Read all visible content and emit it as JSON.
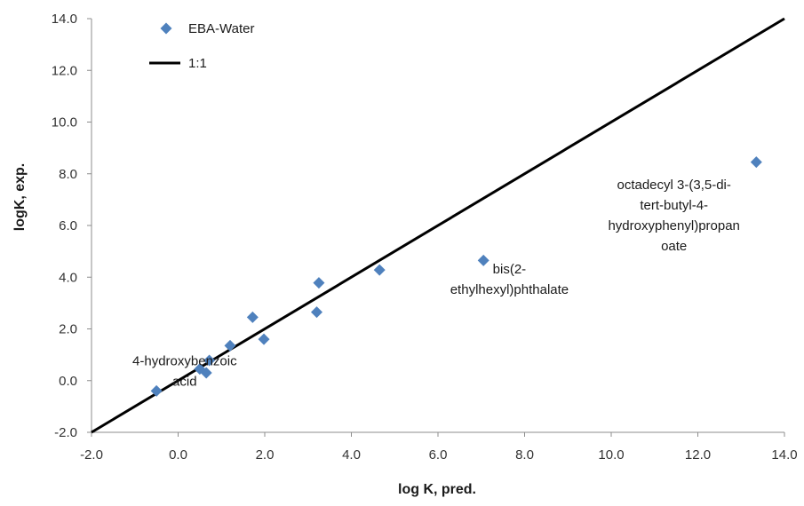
{
  "chart_data": {
    "type": "scatter",
    "xlabel": "log K, pred.",
    "ylabel": "logK, exp.",
    "xlim": [
      -2.0,
      14.0
    ],
    "ylim": [
      -2.0,
      14.0
    ],
    "x_ticks": [
      "-2.0",
      "0.0",
      "2.0",
      "4.0",
      "6.0",
      "8.0",
      "10.0",
      "12.0",
      "14.0"
    ],
    "y_ticks": [
      "-2.0",
      "0.0",
      "2.0",
      "4.0",
      "6.0",
      "8.0",
      "10.0",
      "12.0",
      "14.0"
    ],
    "grid": false,
    "legend_position": "top-left",
    "series": [
      {
        "name": "EBA-Water",
        "kind": "scatter",
        "marker": "diamond",
        "color": "#4f81bd",
        "points": [
          {
            "x": -0.5,
            "y": -0.4
          },
          {
            "x": 0.5,
            "y": 0.45
          },
          {
            "x": 0.65,
            "y": 0.3
          },
          {
            "x": 0.72,
            "y": 0.78
          },
          {
            "x": 1.2,
            "y": 1.35
          },
          {
            "x": 1.72,
            "y": 2.45
          },
          {
            "x": 1.98,
            "y": 1.6
          },
          {
            "x": 3.2,
            "y": 2.65
          },
          {
            "x": 3.25,
            "y": 3.78
          },
          {
            "x": 4.65,
            "y": 4.28
          },
          {
            "x": 7.05,
            "y": 4.65
          },
          {
            "x": 13.35,
            "y": 8.45
          }
        ]
      },
      {
        "name": "1:1",
        "kind": "line",
        "color": "#000000",
        "points": [
          {
            "x": -2.0,
            "y": -2.0
          },
          {
            "x": 14.0,
            "y": 14.0
          }
        ]
      }
    ],
    "annotations": [
      {
        "lines": [
          "4-hydroxybenzoic",
          "acid"
        ],
        "x": 0.15,
        "y": 0.6
      },
      {
        "lines": [
          "bis(2-",
          "ethylhexyl)phthalate"
        ],
        "x": 7.65,
        "y": 4.15
      },
      {
        "lines": [
          "octadecyl 3-(3,5-di-",
          "tert-butyl-4-",
          "hydroxyphenyl)propan",
          "oate"
        ],
        "x": 11.45,
        "y": 7.4
      }
    ]
  }
}
